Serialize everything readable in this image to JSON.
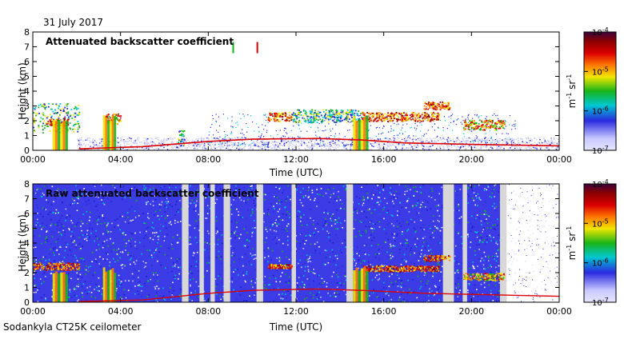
{
  "header": {
    "date": "31 July 2017"
  },
  "footer": {
    "instrument": "Sodankyla CT25K ceilometer"
  },
  "colors": {
    "low": "#c8c8ff",
    "blue": "#2a2adf",
    "cyan": "#00c8d2",
    "green": "#18b418",
    "yellow": "#f0e600",
    "orange": "#ff7800",
    "red": "#dc0000",
    "dark_red": "#8c0000",
    "purple": "#3c003c",
    "gray": "#d7d7d7"
  },
  "chart_data": [
    {
      "type": "heatmap",
      "title": "Attenuated backscatter coefficient",
      "xlabel": "Time (UTC)",
      "ylabel": "Height (km)",
      "xlim_hours": [
        0,
        24
      ],
      "ylim": [
        0,
        8
      ],
      "x_ticks": [
        "00:00",
        "04:00",
        "08:00",
        "12:00",
        "16:00",
        "20:00",
        "00:00"
      ],
      "y_ticks": [
        "0",
        "1",
        "2",
        "3",
        "4",
        "5",
        "6",
        "7",
        "8"
      ],
      "colorbar": {
        "unit_main": "m",
        "unit_exp1": "-1",
        "unit_mid": " sr",
        "unit_exp2": "-1",
        "scale": "log",
        "range": [
          1e-07,
          0.0001
        ],
        "ticks": [
          {
            "value": 0.0001,
            "base": "10",
            "exp": "-4"
          },
          {
            "value": 1e-05,
            "base": "10",
            "exp": "-5"
          },
          {
            "value": 1e-06,
            "base": "10",
            "exp": "-6"
          },
          {
            "value": 1e-07,
            "base": "10",
            "exp": "-7"
          }
        ]
      },
      "cloud_layers": [
        {
          "t": [
            0.0,
            2.1
          ],
          "h": [
            1.2,
            3.2
          ],
          "level": "green"
        },
        {
          "t": [
            0.6,
            1.6
          ],
          "h": [
            1.7,
            2.2
          ],
          "level": "red"
        },
        {
          "t": [
            3.3,
            4.0
          ],
          "h": [
            1.8,
            2.5
          ],
          "level": "yellow"
        },
        {
          "t": [
            6.6,
            6.9
          ],
          "h": [
            0.2,
            1.4
          ],
          "level": "green"
        },
        {
          "t": [
            10.7,
            11.8
          ],
          "h": [
            2.0,
            2.6
          ],
          "level": "red"
        },
        {
          "t": [
            11.8,
            15.0
          ],
          "h": [
            1.9,
            2.8
          ],
          "level": "green"
        },
        {
          "t": [
            15.0,
            18.5
          ],
          "h": [
            2.0,
            2.6
          ],
          "level": "red"
        },
        {
          "t": [
            17.8,
            19.0
          ],
          "h": [
            2.8,
            3.3
          ],
          "level": "red"
        },
        {
          "t": [
            19.6,
            21.5
          ],
          "h": [
            1.4,
            2.1
          ],
          "level": "orange"
        }
      ],
      "rain_columns": [
        {
          "t": [
            0.9,
            1.6
          ],
          "h": [
            0.0,
            2.2
          ]
        },
        {
          "t": [
            3.2,
            3.8
          ],
          "h": [
            0.0,
            2.4
          ]
        },
        {
          "t": [
            14.6,
            15.3
          ],
          "h": [
            0.0,
            2.4
          ]
        }
      ],
      "boundary_layer": [
        {
          "t": 2.1,
          "h": 0.1
        },
        {
          "t": 5.0,
          "h": 0.25
        },
        {
          "t": 8.0,
          "h": 0.6
        },
        {
          "t": 10.0,
          "h": 0.75
        },
        {
          "t": 13.0,
          "h": 0.8
        },
        {
          "t": 15.0,
          "h": 0.7
        },
        {
          "t": 17.0,
          "h": 0.5
        },
        {
          "t": 20.0,
          "h": 0.4
        },
        {
          "t": 24.0,
          "h": 0.3
        }
      ],
      "isolated_features": [
        {
          "t": 10.2,
          "h": 7.0,
          "level": "red"
        },
        {
          "t": 9.1,
          "h": 7.0,
          "level": "green"
        }
      ]
    },
    {
      "type": "heatmap",
      "title": "Raw attenuated backscatter coefficient",
      "xlabel": "Time (UTC)",
      "ylabel": "Height (km)",
      "xlim_hours": [
        0,
        24
      ],
      "ylim": [
        0,
        8
      ],
      "x_ticks": [
        "00:00",
        "04:00",
        "08:00",
        "12:00",
        "16:00",
        "20:00",
        "00:00"
      ],
      "y_ticks": [
        "0",
        "1",
        "2",
        "3",
        "4",
        "5",
        "6",
        "7",
        "8"
      ],
      "colorbar": {
        "unit_main": "m",
        "unit_exp1": "-1",
        "unit_mid": " sr",
        "unit_exp2": "-1",
        "scale": "log",
        "range": [
          1e-07,
          0.0001
        ],
        "ticks": [
          {
            "value": 0.0001,
            "base": "10",
            "exp": "-4"
          },
          {
            "value": 1e-05,
            "base": "10",
            "exp": "-5"
          },
          {
            "value": 1e-06,
            "base": "10",
            "exp": "-6"
          },
          {
            "value": 1e-07,
            "base": "10",
            "exp": "-7"
          }
        ]
      },
      "noise_field": {
        "t": [
          0,
          21.5
        ],
        "h": [
          0,
          8
        ],
        "level": "blue_green_noise"
      },
      "gaps": [
        {
          "t": [
            6.8,
            7.1
          ]
        },
        {
          "t": [
            7.6,
            7.8
          ]
        },
        {
          "t": [
            8.1,
            8.3
          ]
        },
        {
          "t": [
            8.7,
            9.0
          ]
        },
        {
          "t": [
            10.2,
            10.5
          ]
        },
        {
          "t": [
            11.8,
            12.0
          ]
        },
        {
          "t": [
            14.3,
            14.6
          ]
        },
        {
          "t": [
            18.7,
            19.2
          ]
        },
        {
          "t": [
            19.6,
            19.8
          ]
        },
        {
          "t": [
            21.3,
            21.6
          ]
        }
      ],
      "cloud_layers": [
        {
          "t": [
            0.0,
            2.1
          ],
          "h": [
            2.2,
            2.7
          ],
          "level": "red"
        },
        {
          "t": [
            10.7,
            11.8
          ],
          "h": [
            2.3,
            2.6
          ],
          "level": "red"
        },
        {
          "t": [
            15.0,
            18.5
          ],
          "h": [
            2.1,
            2.5
          ],
          "level": "red"
        },
        {
          "t": [
            17.8,
            19.0
          ],
          "h": [
            2.8,
            3.2
          ],
          "level": "red"
        },
        {
          "t": [
            19.6,
            21.5
          ],
          "h": [
            1.5,
            2.0
          ],
          "level": "orange"
        }
      ],
      "rain_columns": [
        {
          "t": [
            0.9,
            1.6
          ],
          "h": [
            0.0,
            2.2
          ]
        },
        {
          "t": [
            3.2,
            3.8
          ],
          "h": [
            0.0,
            2.4
          ]
        },
        {
          "t": [
            14.6,
            15.3
          ],
          "h": [
            0.0,
            2.4
          ]
        }
      ]
    }
  ]
}
